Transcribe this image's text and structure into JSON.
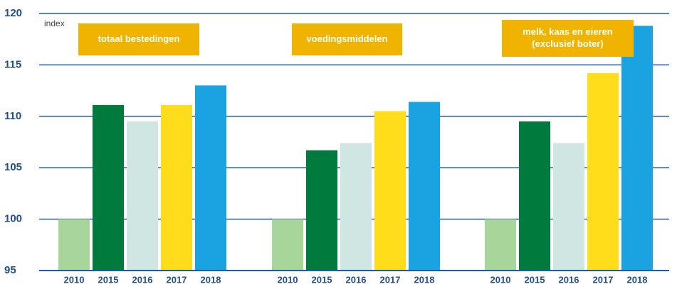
{
  "chart_data": {
    "type": "bar",
    "y_label": "index",
    "ylim": [
      95,
      120
    ],
    "yticks": [
      95,
      100,
      105,
      110,
      115,
      120
    ],
    "grid": true,
    "colors": [
      "#a8d59a",
      "#007a3d",
      "#cfe6e2",
      "#ffdd1a",
      "#1aa3e0"
    ],
    "groups": [
      {
        "label": [
          "totaal bestedingen"
        ],
        "categories": [
          "2010",
          "2015",
          "2016",
          "2017",
          "2018"
        ],
        "values": [
          100,
          111.1,
          109.5,
          111.1,
          113.0
        ]
      },
      {
        "label": [
          "voedingsmiddelen"
        ],
        "categories": [
          "2010",
          "2015",
          "2016",
          "2017",
          "2018"
        ],
        "values": [
          100,
          106.7,
          107.4,
          110.5,
          111.4
        ]
      },
      {
        "label": [
          "melk, kaas en eieren",
          "(exclusief boter)"
        ],
        "categories": [
          "2010",
          "2015",
          "2016",
          "2017",
          "2018"
        ],
        "values": [
          100,
          109.5,
          107.4,
          114.2,
          118.8
        ]
      }
    ]
  }
}
